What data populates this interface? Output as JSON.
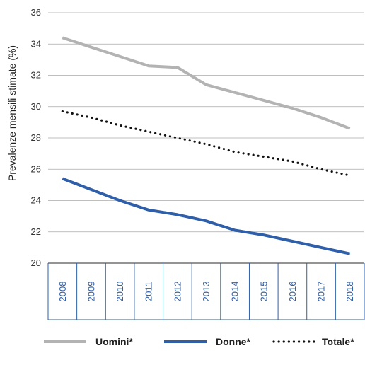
{
  "chart_data": {
    "type": "line",
    "x": [
      "2008",
      "2009",
      "2010",
      "2011",
      "2012",
      "2013",
      "2014",
      "2015",
      "2016",
      "2017",
      "2018"
    ],
    "series": [
      {
        "name": "Uomini*",
        "color": "#b3b3b3",
        "style": "solid",
        "values": [
          34.4,
          33.8,
          33.2,
          32.6,
          32.5,
          31.4,
          30.9,
          30.4,
          29.9,
          29.3,
          28.6
        ]
      },
      {
        "name": "Donne*",
        "color": "#2e5fa8",
        "style": "solid",
        "values": [
          25.4,
          24.7,
          24.0,
          23.4,
          23.1,
          22.7,
          22.1,
          21.8,
          21.4,
          21.0,
          20.6
        ]
      },
      {
        "name": "Totale*",
        "color": "#111111",
        "style": "dotted",
        "values": [
          29.7,
          29.3,
          28.8,
          28.4,
          28.0,
          27.6,
          27.1,
          26.8,
          26.5,
          26.0,
          25.6
        ]
      }
    ],
    "ylabel": "Prevalenze mensili stimate  (%)",
    "ylim": [
      20,
      36
    ],
    "yticks": [
      20,
      22,
      24,
      26,
      28,
      30,
      32,
      34,
      36
    ],
    "grid": true,
    "legend_position": "bottom"
  }
}
